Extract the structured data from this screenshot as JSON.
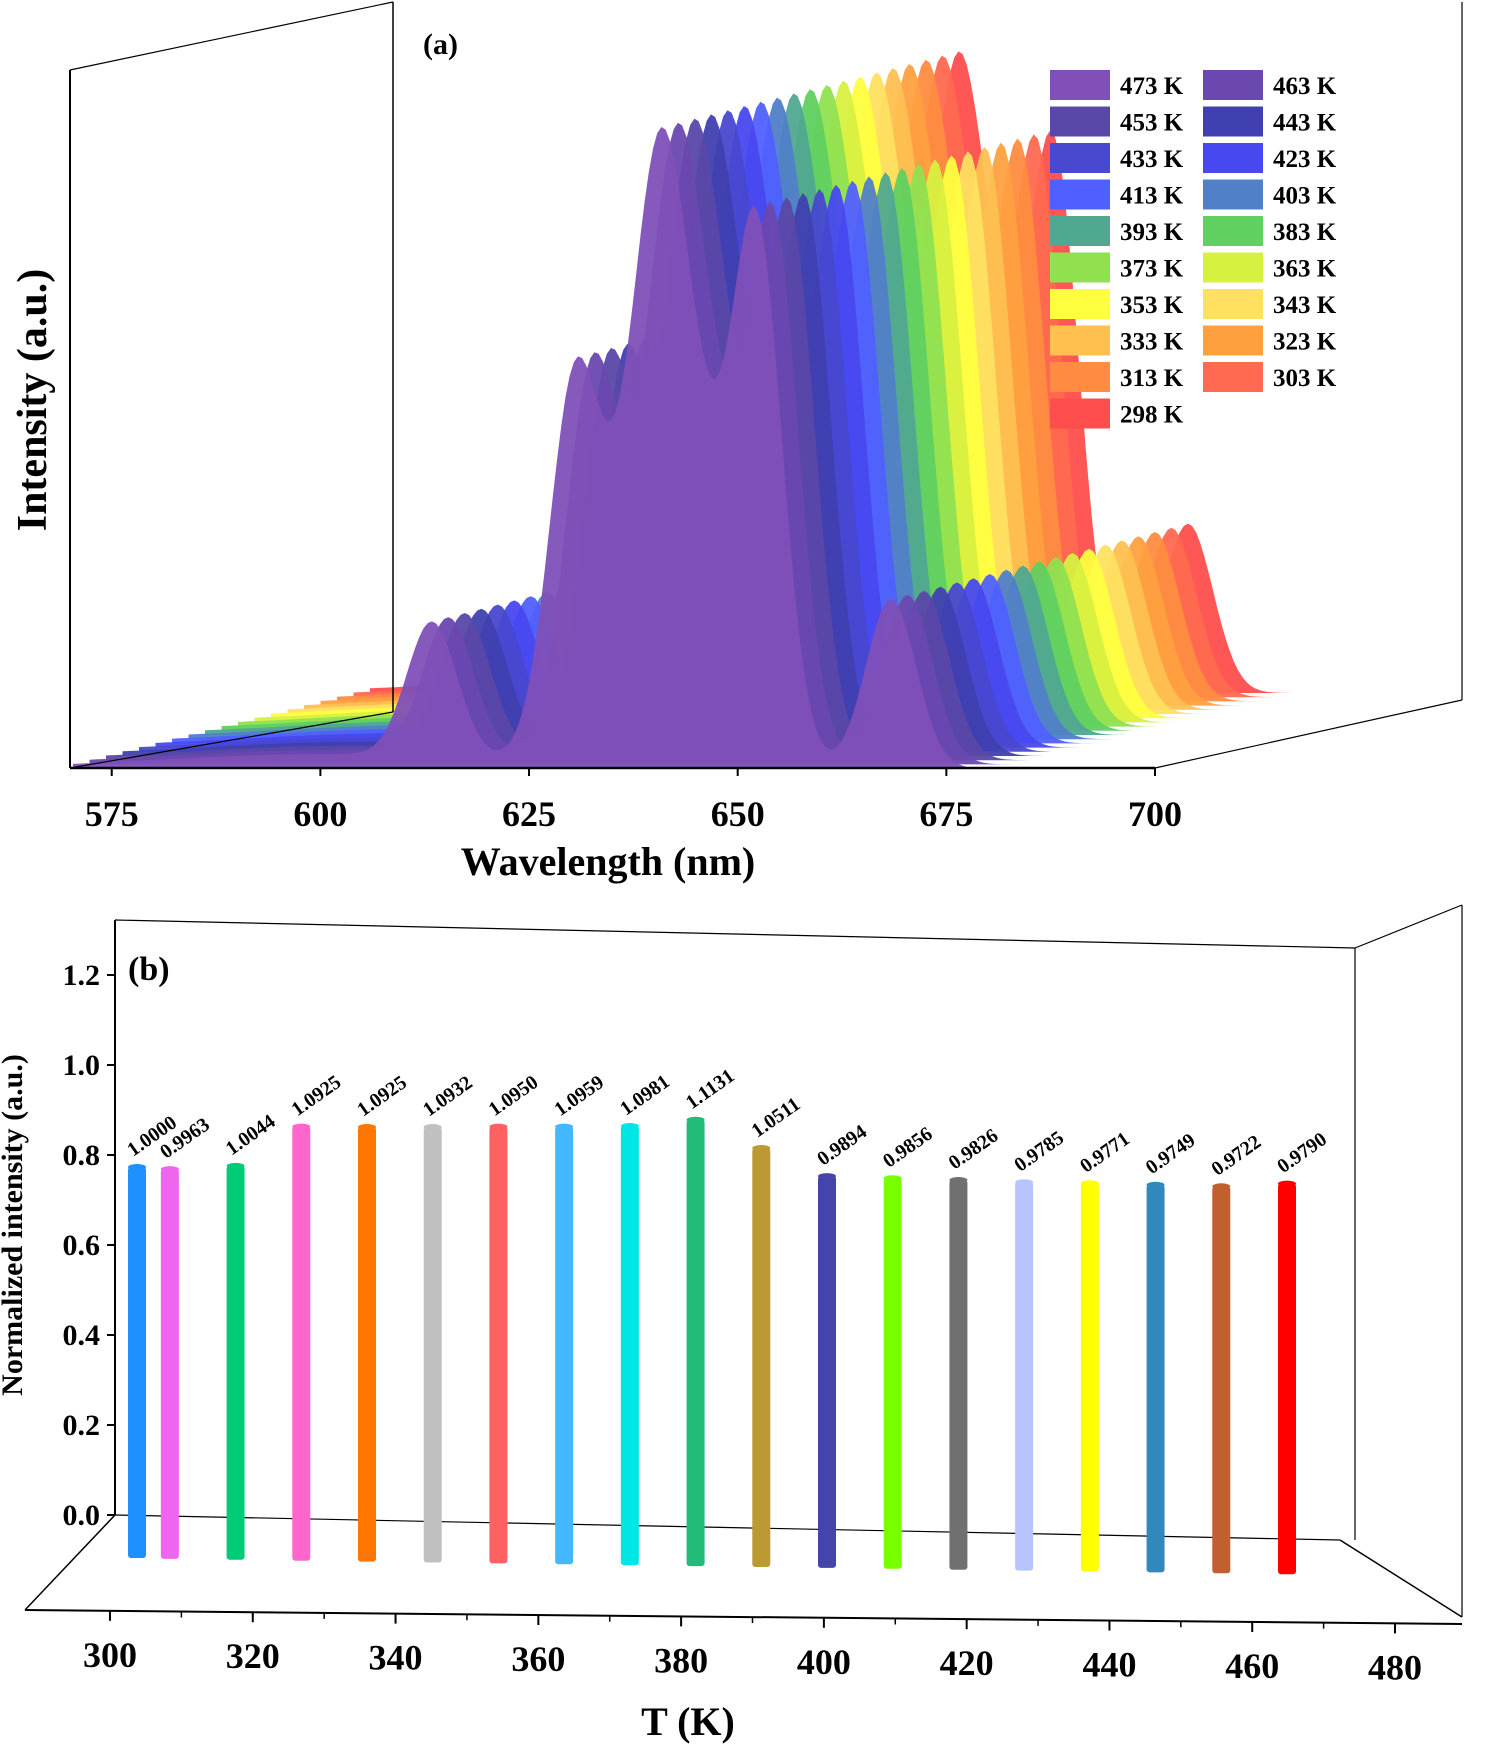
{
  "chart_data": [
    {
      "type": "area",
      "panel_label": "(a)",
      "xlabel": "Wavelength (nm)",
      "ylabel": "Intensity (a.u.)",
      "xlim": [
        570,
        700
      ],
      "x_ticks": [
        575,
        600,
        625,
        650,
        675,
        700
      ],
      "y_ticks": [],
      "legend_position": "top-right",
      "peaks": [
        {
          "center_nm": 613,
          "relative_height": 0.28
        },
        {
          "center_nm": 630,
          "relative_height": 0.68
        },
        {
          "center_nm": 640,
          "relative_height": 0.62
        },
        {
          "center_nm": 644,
          "relative_height": 0.18
        },
        {
          "center_nm": 652,
          "relative_height": 1.0
        },
        {
          "center_nm": 668,
          "relative_height": 0.35
        }
      ],
      "series": [
        {
          "name": "298 K",
          "color": "#ff4d4d"
        },
        {
          "name": "303 K",
          "color": "#ff6a50"
        },
        {
          "name": "313 K",
          "color": "#ff8c40"
        },
        {
          "name": "323 K",
          "color": "#ffa040"
        },
        {
          "name": "333 K",
          "color": "#ffc050"
        },
        {
          "name": "343 K",
          "color": "#ffe060"
        },
        {
          "name": "353 K",
          "color": "#ffff40"
        },
        {
          "name": "363 K",
          "color": "#d8f040"
        },
        {
          "name": "373 K",
          "color": "#90e050"
        },
        {
          "name": "383 K",
          "color": "#60d060"
        },
        {
          "name": "393 K",
          "color": "#50a890"
        },
        {
          "name": "403 K",
          "color": "#5080c8"
        },
        {
          "name": "413 K",
          "color": "#5060ff"
        },
        {
          "name": "423 K",
          "color": "#4848f0"
        },
        {
          "name": "433 K",
          "color": "#4848d0"
        },
        {
          "name": "443 K",
          "color": "#4040b0"
        },
        {
          "name": "453 K",
          "color": "#5a48a8"
        },
        {
          "name": "463 K",
          "color": "#6a48b0"
        },
        {
          "name": "473 K",
          "color": "#8050b8"
        }
      ]
    },
    {
      "type": "bar",
      "panel_label": "(b)",
      "xlabel": "T (K)",
      "ylabel": "Normalized intensity (a.u.)",
      "ylim": [
        0,
        1.3
      ],
      "xlim": [
        300,
        480
      ],
      "y_ticks": [
        "0.0",
        "0.2",
        "0.4",
        "0.6",
        "0.8",
        "1.0",
        "1.2"
      ],
      "x_ticks": [
        "300",
        "320",
        "340",
        "360",
        "380",
        "400",
        "420",
        "440",
        "460",
        "480"
      ],
      "x": [
        298,
        303,
        313,
        323,
        333,
        343,
        353,
        363,
        373,
        383,
        393,
        403,
        413,
        423,
        433,
        443,
        453,
        463,
        473
      ],
      "values": [
        1.0,
        0.9963,
        1.0044,
        1.0925,
        1.0925,
        1.0932,
        1.095,
        1.0959,
        1.0981,
        1.1131,
        1.0511,
        0.9894,
        0.9856,
        0.9826,
        0.9785,
        0.9771,
        0.9749,
        0.9722,
        0.979
      ],
      "data_labels": [
        "1.0000",
        "0.9963",
        "1.0044",
        "1.0925",
        "1.0925",
        "1.0932",
        "1.0950",
        "1.0959",
        "1.0981",
        "1.1131",
        "1.0511",
        "0.9894",
        "0.9856",
        "0.9826",
        "0.9785",
        "0.9771",
        "0.9749",
        "0.9722",
        "0.9790"
      ],
      "colors": [
        "#1e90ff",
        "#ee66ee",
        "#00cc77",
        "#ff66cc",
        "#ff7700",
        "#c0c0c0",
        "#ff6060",
        "#44b8ff",
        "#00e5e5",
        "#22bb77",
        "#bb9933",
        "#4444aa",
        "#77ff00",
        "#707070",
        "#b8c4ff",
        "#ffff00",
        "#3388bb",
        "#c06030",
        "#ff0000"
      ]
    }
  ]
}
